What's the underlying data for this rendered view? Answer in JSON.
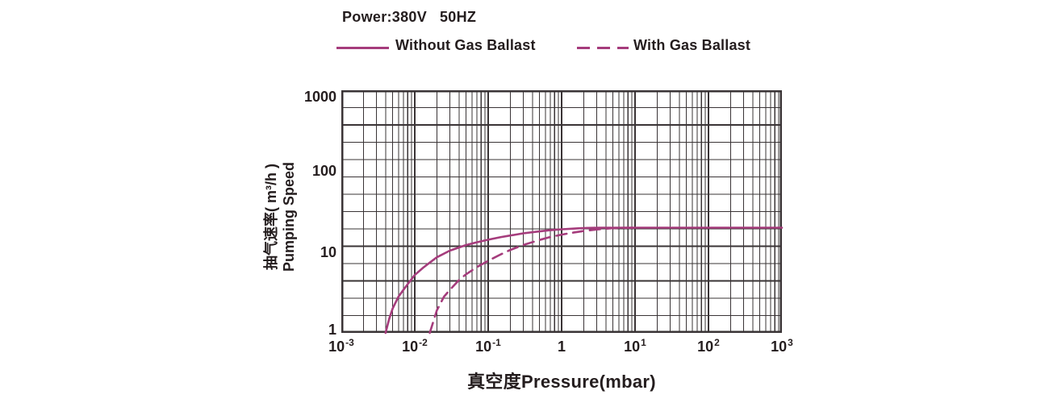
{
  "header": {
    "power": "Power:380V   50HZ"
  },
  "legend": {
    "without_label": "Without Gas Ballast",
    "with_label": "With Gas Ballast"
  },
  "axes": {
    "y_title_line1": "抽气速率( m³/h )",
    "y_title_line2": "Pumping Speed",
    "x_title": "真空度Pressure(mbar)"
  },
  "colors": {
    "curve": "#a53c7c",
    "grid": "#3a3436",
    "text": "#241d1e"
  },
  "chart_data": {
    "type": "line",
    "title": "Power:380V   50HZ",
    "xlabel": "真空度Pressure(mbar)",
    "ylabel": "抽气速率( m³/h ) Pumping Speed",
    "legend_position": "top",
    "grid": {
      "x_minors": [
        2,
        3,
        4,
        5,
        6,
        7,
        8,
        9
      ],
      "y_rows": 14,
      "y_bold_rows": [
        2,
        9,
        11
      ]
    },
    "x_axis": {
      "scale": "log",
      "min": 0.001,
      "max": 1000,
      "ticks": [
        {
          "base": "10",
          "exp": "-3"
        },
        {
          "base": "10",
          "exp": "-2"
        },
        {
          "base": "10",
          "exp": "-1"
        },
        {
          "base": "1",
          "exp": ""
        },
        {
          "base": "10",
          "exp": "1"
        },
        {
          "base": "10",
          "exp": "2"
        },
        {
          "base": "10",
          "exp": "3"
        }
      ]
    },
    "y_axis": {
      "scale": "log",
      "min": 1,
      "max": 1000,
      "ticks": [
        "1000",
        "100",
        "10",
        "1"
      ]
    },
    "series": [
      {
        "name": "Without Gas Ballast",
        "style": "solid",
        "points": [
          [
            0.004,
            1
          ],
          [
            0.0045,
            1.5
          ],
          [
            0.005,
            2
          ],
          [
            0.006,
            2.8
          ],
          [
            0.007,
            3.4
          ],
          [
            0.008,
            4.0
          ],
          [
            0.01,
            5.2
          ],
          [
            0.013,
            6.4
          ],
          [
            0.016,
            7.4
          ],
          [
            0.02,
            8.6
          ],
          [
            0.03,
            10.4
          ],
          [
            0.05,
            12.2
          ],
          [
            0.07,
            13.2
          ],
          [
            0.1,
            14.2
          ],
          [
            0.15,
            15.3
          ],
          [
            0.2,
            16.0
          ],
          [
            0.3,
            17.0
          ],
          [
            0.5,
            18.0
          ],
          [
            0.7,
            18.6
          ],
          [
            1,
            19.1
          ],
          [
            1.5,
            19.5
          ],
          [
            2,
            19.8
          ],
          [
            3,
            20
          ],
          [
            5,
            20
          ],
          [
            10,
            20
          ],
          [
            100,
            20
          ],
          [
            1000,
            20
          ]
        ]
      },
      {
        "name": "With Gas Ballast",
        "style": "dashed",
        "points": [
          [
            0.016,
            1
          ],
          [
            0.018,
            1.4
          ],
          [
            0.02,
            1.9
          ],
          [
            0.025,
            2.8
          ],
          [
            0.03,
            3.4
          ],
          [
            0.04,
            4.5
          ],
          [
            0.05,
            5.3
          ],
          [
            0.07,
            6.5
          ],
          [
            0.1,
            7.8
          ],
          [
            0.15,
            9.4
          ],
          [
            0.2,
            10.6
          ],
          [
            0.3,
            12.2
          ],
          [
            0.5,
            14.1
          ],
          [
            0.7,
            15.3
          ],
          [
            1,
            16.4
          ],
          [
            1.5,
            17.5
          ],
          [
            2,
            18.2
          ],
          [
            3,
            19.0
          ],
          [
            4,
            19.4
          ],
          [
            5,
            19.7
          ],
          [
            7,
            19.9
          ],
          [
            10,
            20
          ]
        ]
      }
    ]
  }
}
